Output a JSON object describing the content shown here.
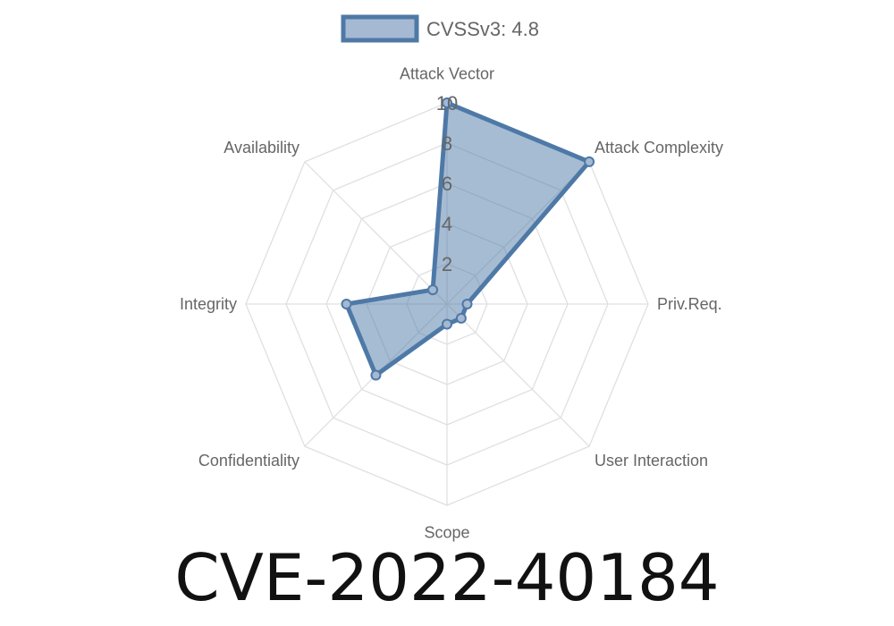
{
  "chart_data": {
    "type": "radar",
    "legend": {
      "label": "CVSSv3: 4.8",
      "position": "top"
    },
    "axes": [
      "Attack Vector",
      "Attack Complexity",
      "Priv.Req.",
      "User Interaction",
      "Scope",
      "Confidentiality",
      "Integrity",
      "Availability"
    ],
    "series": [
      {
        "name": "CVSSv3: 4.8",
        "values": [
          10,
          10,
          1,
          1,
          1,
          5,
          5,
          1
        ]
      }
    ],
    "rlim": [
      0,
      10
    ],
    "ticks": [
      "2",
      "4",
      "6",
      "8",
      "10"
    ],
    "grid": true,
    "colors": {
      "stroke": "#4e79a7",
      "fill": "#a5b9d3",
      "grid": "#e0e0e0",
      "label": "#666666"
    }
  },
  "title": "CVE-2022-40184"
}
